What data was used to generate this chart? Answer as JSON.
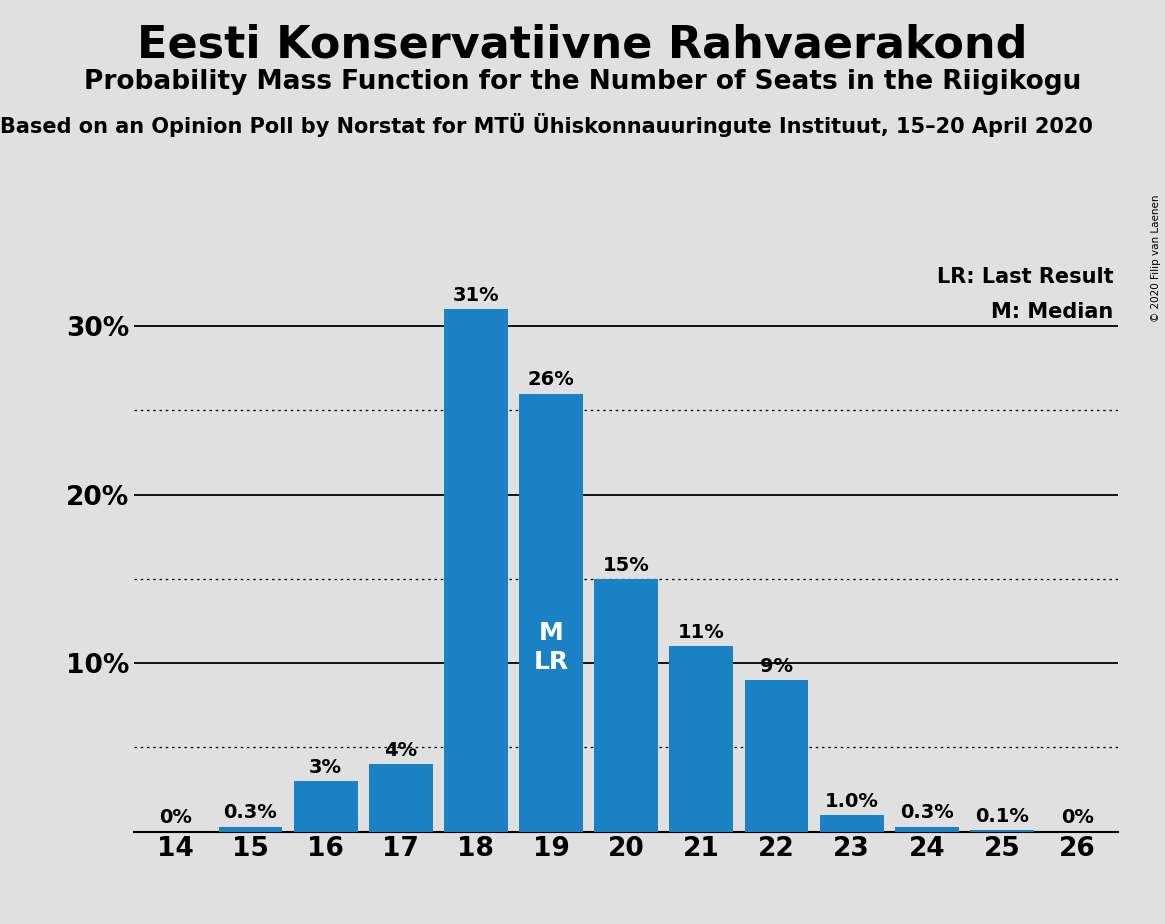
{
  "title": "Eesti Konservatiivne Rahvaerakond",
  "subtitle": "Probability Mass Function for the Number of Seats in the Riigikogu",
  "source": "Based on an Opinion Poll by Norstat for MTU Ühiskonnauuringute Instituut, 15–20 April 2020",
  "source_display": "Based on an Opinion Poll by Norstat for MTÜ Ühiskonnauuringute Instituut, 15–20 April 2020",
  "copyright": "© 2020 Filip van Laenen",
  "seats": [
    14,
    15,
    16,
    17,
    18,
    19,
    20,
    21,
    22,
    23,
    24,
    25,
    26
  ],
  "probabilities": [
    0.0,
    0.3,
    3.0,
    4.0,
    31.0,
    26.0,
    15.0,
    11.0,
    9.0,
    1.0,
    0.3,
    0.1,
    0.0
  ],
  "labels": [
    "0%",
    "0.3%",
    "3%",
    "4%",
    "31%",
    "26%",
    "15%",
    "11%",
    "9%",
    "1.0%",
    "0.3%",
    "0.1%",
    "0%"
  ],
  "bar_color": "#1a82c4",
  "background_color": "#e0e0e0",
  "median_seat": 19,
  "last_result_seat": 19,
  "median_label": "M",
  "lr_label": "LR",
  "legend_lr": "LR: Last Result",
  "legend_m": "M: Median",
  "ylim": [
    0,
    34
  ],
  "dotted_yticks": [
    5,
    15,
    25
  ],
  "solid_yticks": [
    10,
    20,
    30
  ],
  "ytick_labels_map": {
    "10": "10%",
    "20": "20%",
    "30": "30%"
  },
  "title_fontsize": 32,
  "subtitle_fontsize": 19,
  "source_fontsize": 15,
  "bar_label_fontsize": 14,
  "tick_fontsize": 19,
  "legend_fontsize": 15
}
